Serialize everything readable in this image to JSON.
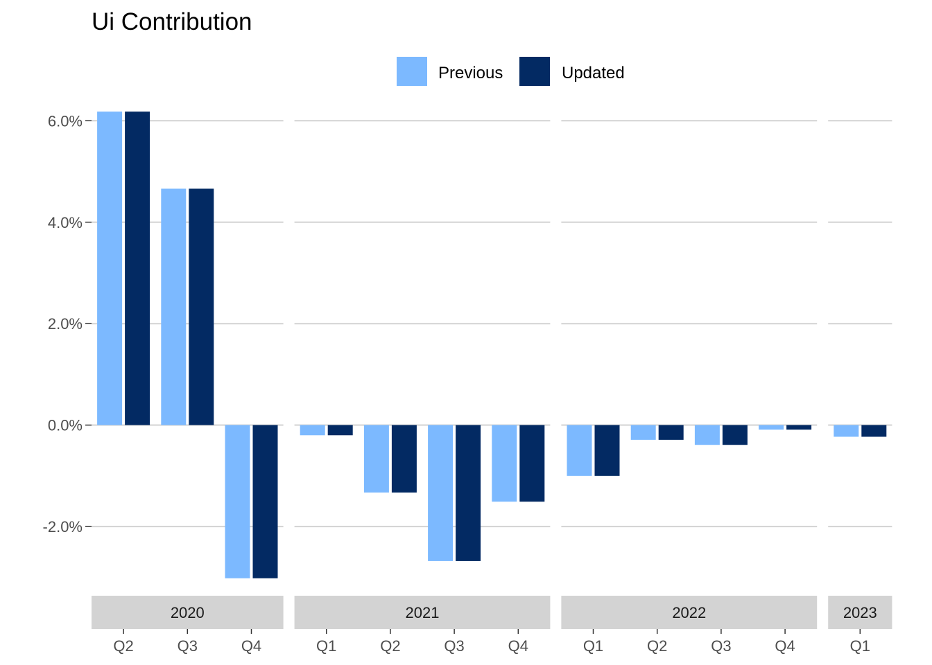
{
  "chart_data": {
    "type": "bar",
    "title": "Ui Contribution",
    "xlabel": "",
    "ylabel": "",
    "y_tick_labels": [
      "-2.0%",
      "0.0%",
      "2.0%",
      "4.0%",
      "6.0%"
    ],
    "y_tick_values": [
      -2.0,
      0.0,
      2.0,
      4.0,
      6.0
    ],
    "ylim": [
      -3.2,
      6.4
    ],
    "grid": true,
    "legend_position": "top",
    "colors": {
      "Previous": "#7cb9ff",
      "Updated": "#032a63",
      "grid": "#d3d3d3",
      "strip": "#d3d3d3"
    },
    "series": [
      {
        "name": "Previous"
      },
      {
        "name": "Updated"
      }
    ],
    "facets": [
      {
        "label": "2020",
        "categories": [
          "Q2",
          "Q3",
          "Q4"
        ],
        "values": {
          "Previous": [
            6.18,
            4.66,
            -3.02
          ],
          "Updated": [
            6.18,
            4.66,
            -3.02
          ]
        }
      },
      {
        "label": "2021",
        "categories": [
          "Q1",
          "Q2",
          "Q3",
          "Q4"
        ],
        "values": {
          "Previous": [
            -0.2,
            -1.33,
            -2.68,
            -1.51
          ],
          "Updated": [
            -0.2,
            -1.33,
            -2.68,
            -1.51
          ]
        }
      },
      {
        "label": "2022",
        "categories": [
          "Q1",
          "Q2",
          "Q3",
          "Q4"
        ],
        "values": {
          "Previous": [
            -1.0,
            -0.29,
            -0.39,
            -0.09
          ],
          "Updated": [
            -1.0,
            -0.29,
            -0.39,
            -0.09
          ]
        }
      },
      {
        "label": "2023",
        "categories": [
          "Q1"
        ],
        "values": {
          "Previous": [
            -0.23
          ],
          "Updated": [
            -0.23
          ]
        }
      }
    ]
  }
}
